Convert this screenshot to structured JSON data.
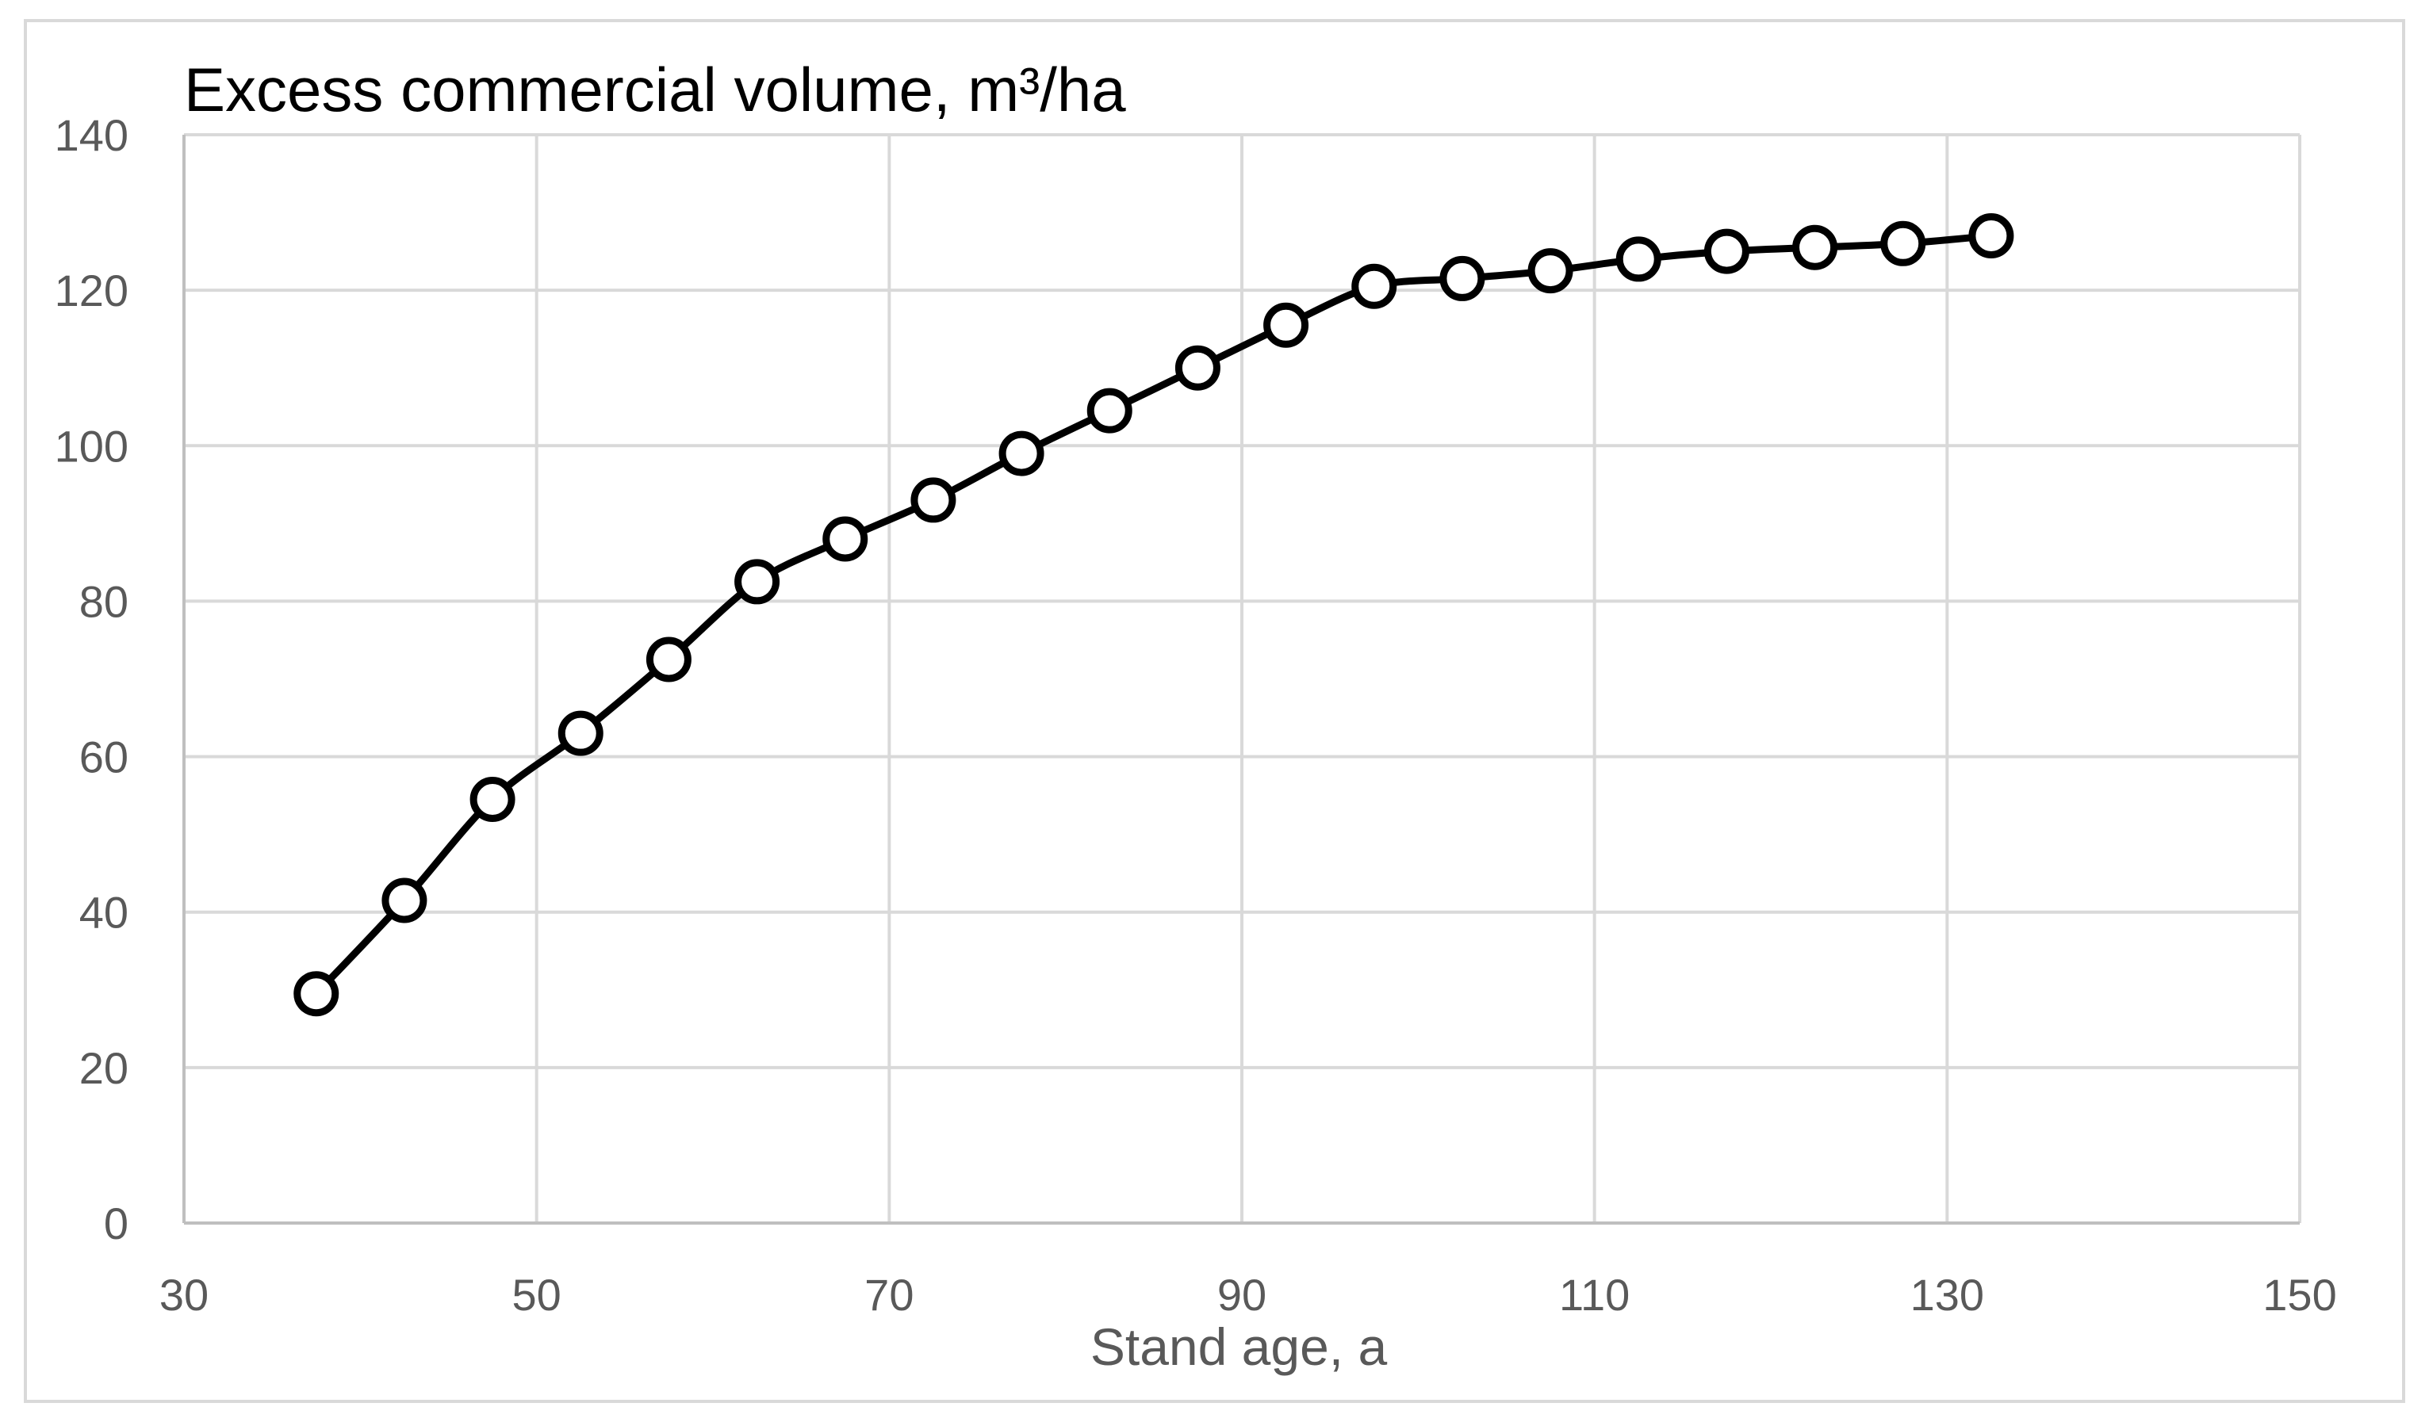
{
  "chart_data": {
    "type": "scatter",
    "title": "Excess commercial volume, m³/ha",
    "xlabel": "Stand age, a",
    "ylabel": "",
    "xlim": [
      30,
      150
    ],
    "ylim": [
      0,
      140
    ],
    "xticks": [
      30,
      50,
      70,
      90,
      110,
      130,
      150
    ],
    "yticks": [
      0,
      20,
      40,
      60,
      80,
      100,
      120,
      140
    ],
    "grid": true,
    "legend": "none",
    "series": [
      {
        "x": [
          37.5,
          42.5,
          47.5,
          52.5,
          57.5,
          62.5,
          67.5,
          72.5,
          77.5,
          82.5,
          87.5,
          92.5,
          97.5,
          102.5,
          107.5,
          112.5,
          117.5,
          122.5,
          127.5,
          132.5
        ],
        "y": [
          29.5,
          41.5,
          54.5,
          63,
          72.5,
          82.5,
          88,
          93,
          99,
          104.5,
          110,
          115.5,
          120.5,
          121.5,
          122.5,
          124,
          125,
          125.5,
          126,
          127
        ],
        "marker": "open-circle",
        "line": "smooth",
        "color": "#000000"
      }
    ],
    "colors": {
      "grid": "#d9d9d9",
      "axis": "#bfbfbf",
      "tick_text": "#595959",
      "series": "#000000"
    }
  }
}
